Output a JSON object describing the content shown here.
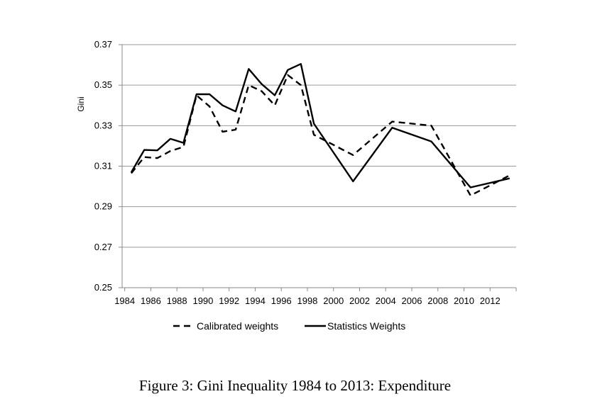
{
  "caption": "Figure 3: Gini Inequality 1984 to 2013: Expenditure",
  "chart_data": {
    "type": "line",
    "title": "",
    "xlabel": "",
    "ylabel": "Gini",
    "xlim": [
      1983.8,
      2014.0
    ],
    "ylim": [
      0.25,
      0.37
    ],
    "yticks": [
      0.25,
      0.27,
      0.29,
      0.31,
      0.33,
      0.35,
      0.37
    ],
    "ytick_labels": [
      "0.25",
      "0.27",
      "0.29",
      "0.31",
      "0.33",
      "0.35",
      "0.37"
    ],
    "xticks": [
      1984,
      1986,
      1988,
      1990,
      1992,
      1994,
      1996,
      1998,
      2000,
      2002,
      2004,
      2006,
      2008,
      2010,
      2012
    ],
    "xtick_labels": [
      "1984",
      "1986",
      "1988",
      "1990",
      "1992",
      "1994",
      "1996",
      "1998",
      "2000",
      "2002",
      "2004",
      "2006",
      "2008",
      "2010",
      "2012"
    ],
    "grid": "horizontal",
    "legend_position": "bottom",
    "series": [
      {
        "name": "Calibrated weights",
        "style": "dashed",
        "color": "#000000",
        "x": [
          1984.5,
          1985.5,
          1986.5,
          1987.5,
          1988.5,
          1989.5,
          1990.5,
          1991.5,
          1992.5,
          1993.5,
          1994.5,
          1995.5,
          1996.5,
          1997.5,
          1998.5,
          2001.5,
          2004.5,
          2007.5,
          2010.5,
          2013.5
        ],
        "y": [
          0.3065,
          0.3145,
          0.314,
          0.3175,
          0.3195,
          0.345,
          0.3395,
          0.327,
          0.328,
          0.35,
          0.347,
          0.34,
          0.355,
          0.35,
          0.3255,
          0.3155,
          0.332,
          0.33,
          0.2955,
          0.3055
        ]
      },
      {
        "name": "Statistics Weights",
        "style": "solid",
        "color": "#000000",
        "x": [
          1984.5,
          1985.5,
          1986.5,
          1987.5,
          1988.5,
          1989.5,
          1990.5,
          1991.5,
          1992.5,
          1993.5,
          1994.5,
          1995.5,
          1996.5,
          1997.5,
          1998.5,
          2001.5,
          2004.5,
          2007.5,
          2010.5,
          2013.5
        ],
        "y": [
          0.307,
          0.318,
          0.3178,
          0.3235,
          0.3215,
          0.3455,
          0.3455,
          0.34,
          0.337,
          0.358,
          0.3505,
          0.345,
          0.3575,
          0.3605,
          0.331,
          0.3025,
          0.329,
          0.3222,
          0.2995,
          0.304
        ]
      }
    ]
  }
}
